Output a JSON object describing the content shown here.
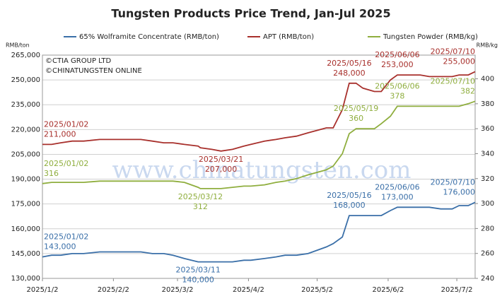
{
  "chart_data": {
    "type": "line",
    "title": "Tungsten Products Price Trend, Jan-Jul 2025",
    "y_label": "RMB/ton",
    "y2_label": "RMB/kg",
    "source": [
      "©CTIA GROUP LTD",
      "©CHINATUNGSTEN ONLINE"
    ],
    "watermark": "www.chinatungsten.com",
    "legend": "top",
    "grid": true,
    "x": [
      "2025/01/02",
      "2025/01/06",
      "2025/01/10",
      "2025/01/15",
      "2025/01/20",
      "2025/01/27",
      "2025/02/05",
      "2025/02/10",
      "2025/02/14",
      "2025/02/19",
      "2025/02/24",
      "2025/02/28",
      "2025/03/05",
      "2025/03/11",
      "2025/03/12",
      "2025/03/17",
      "2025/03/21",
      "2025/03/26",
      "2025/03/31",
      "2025/04/03",
      "2025/04/09",
      "2025/04/14",
      "2025/04/18",
      "2025/04/23",
      "2025/04/28",
      "2025/05/06",
      "2025/05/09",
      "2025/05/13",
      "2025/05/16",
      "2025/05/19",
      "2025/05/22",
      "2025/05/27",
      "2025/05/30",
      "2025/06/03",
      "2025/06/06",
      "2025/06/11",
      "2025/06/16",
      "2025/06/20",
      "2025/06/25",
      "2025/06/30",
      "2025/07/03",
      "2025/07/07",
      "2025/07/10"
    ],
    "xlim": [
      "2025/01/02",
      "2025/07/10"
    ],
    "xticks": [
      {
        "value": "2025/01/02",
        "label": "2025/1/2"
      },
      {
        "value": "2025/02/02",
        "label": "2025/2/2"
      },
      {
        "value": "2025/03/02",
        "label": "2025/3/2"
      },
      {
        "value": "2025/04/02",
        "label": "2025/4/2"
      },
      {
        "value": "2025/05/02",
        "label": "2025/5/2"
      },
      {
        "value": "2025/06/02",
        "label": "2025/6/2"
      },
      {
        "value": "2025/07/02",
        "label": "2025/7/2"
      }
    ],
    "ylim": [
      130000,
      265000
    ],
    "yticks": [
      {
        "value": 130000,
        "label": "130,000"
      },
      {
        "value": 145000,
        "label": "145,000"
      },
      {
        "value": 160000,
        "label": "160,000"
      },
      {
        "value": 175000,
        "label": "175,000"
      },
      {
        "value": 190000,
        "label": "190,000"
      },
      {
        "value": 205000,
        "label": "205,000"
      },
      {
        "value": 220000,
        "label": "220,000"
      },
      {
        "value": 235000,
        "label": "235,000"
      },
      {
        "value": 250000,
        "label": "250,000"
      },
      {
        "value": 265000,
        "label": "265,000"
      }
    ],
    "y2lim": [
      240,
      419
    ],
    "y2ticks": [
      240,
      260,
      280,
      300,
      320,
      340,
      360,
      380,
      400
    ],
    "series": [
      {
        "name": "65% Wolframite Concentrate (RMB/ton)",
        "color": "#3a6fa8",
        "values": [
          143000,
          144000,
          144000,
          145000,
          145000,
          146000,
          146000,
          146000,
          146000,
          145000,
          145000,
          144000,
          142000,
          140000,
          140000,
          140000,
          140000,
          140000,
          141000,
          141000,
          142000,
          143000,
          144000,
          144000,
          145000,
          149000,
          151000,
          155000,
          168000,
          168000,
          168000,
          168000,
          168000,
          171000,
          173000,
          173000,
          173000,
          173000,
          172000,
          172000,
          174000,
          174000,
          176000
        ],
        "value_labels": [
          "143,000",
          null,
          null,
          null,
          null,
          null,
          null,
          null,
          null,
          null,
          null,
          null,
          null,
          "140,000",
          null,
          null,
          null,
          null,
          null,
          null,
          null,
          null,
          null,
          null,
          null,
          null,
          null,
          null,
          "168,000",
          null,
          null,
          null,
          null,
          null,
          "173,000",
          null,
          null,
          null,
          null,
          null,
          null,
          null,
          "176,000"
        ]
      },
      {
        "name": "APT (RMB/ton)",
        "color": "#a8302c",
        "values": [
          211000,
          211000,
          212000,
          213000,
          213000,
          214000,
          214000,
          214000,
          214000,
          213000,
          212000,
          212000,
          211000,
          210000,
          209000,
          208000,
          207000,
          208000,
          210000,
          211000,
          213000,
          214000,
          215000,
          216000,
          218000,
          221000,
          221000,
          232000,
          248000,
          248000,
          245000,
          243000,
          243000,
          250000,
          253000,
          253000,
          253000,
          252000,
          252000,
          252000,
          253000,
          253000,
          255000
        ],
        "value_labels": [
          "211,000",
          null,
          null,
          null,
          null,
          null,
          null,
          null,
          null,
          null,
          null,
          null,
          null,
          null,
          null,
          null,
          "207,000",
          null,
          null,
          null,
          null,
          null,
          null,
          null,
          null,
          null,
          null,
          null,
          "248,000",
          null,
          null,
          null,
          null,
          null,
          "253,000",
          null,
          null,
          null,
          null,
          null,
          null,
          null,
          "255,000"
        ]
      },
      {
        "name": "Tungsten Powder (RMB/kg)",
        "color": "#8fae3e",
        "axis": "y2",
        "values": [
          316,
          317,
          317,
          317,
          317,
          318,
          318,
          318,
          318,
          318,
          318,
          318,
          317,
          313,
          312,
          312,
          312,
          313,
          314,
          314,
          315,
          317,
          318,
          320,
          323,
          327,
          330,
          340,
          356,
          360,
          360,
          360,
          364,
          370,
          378,
          378,
          378,
          378,
          378,
          378,
          378,
          380,
          382
        ],
        "value_labels": [
          "316",
          null,
          null,
          null,
          null,
          null,
          null,
          null,
          null,
          null,
          null,
          null,
          null,
          null,
          "312",
          null,
          null,
          null,
          null,
          null,
          null,
          null,
          null,
          null,
          null,
          null,
          null,
          null,
          null,
          "360",
          null,
          null,
          null,
          null,
          "378",
          null,
          null,
          null,
          null,
          null,
          null,
          null,
          "382"
        ]
      }
    ]
  }
}
